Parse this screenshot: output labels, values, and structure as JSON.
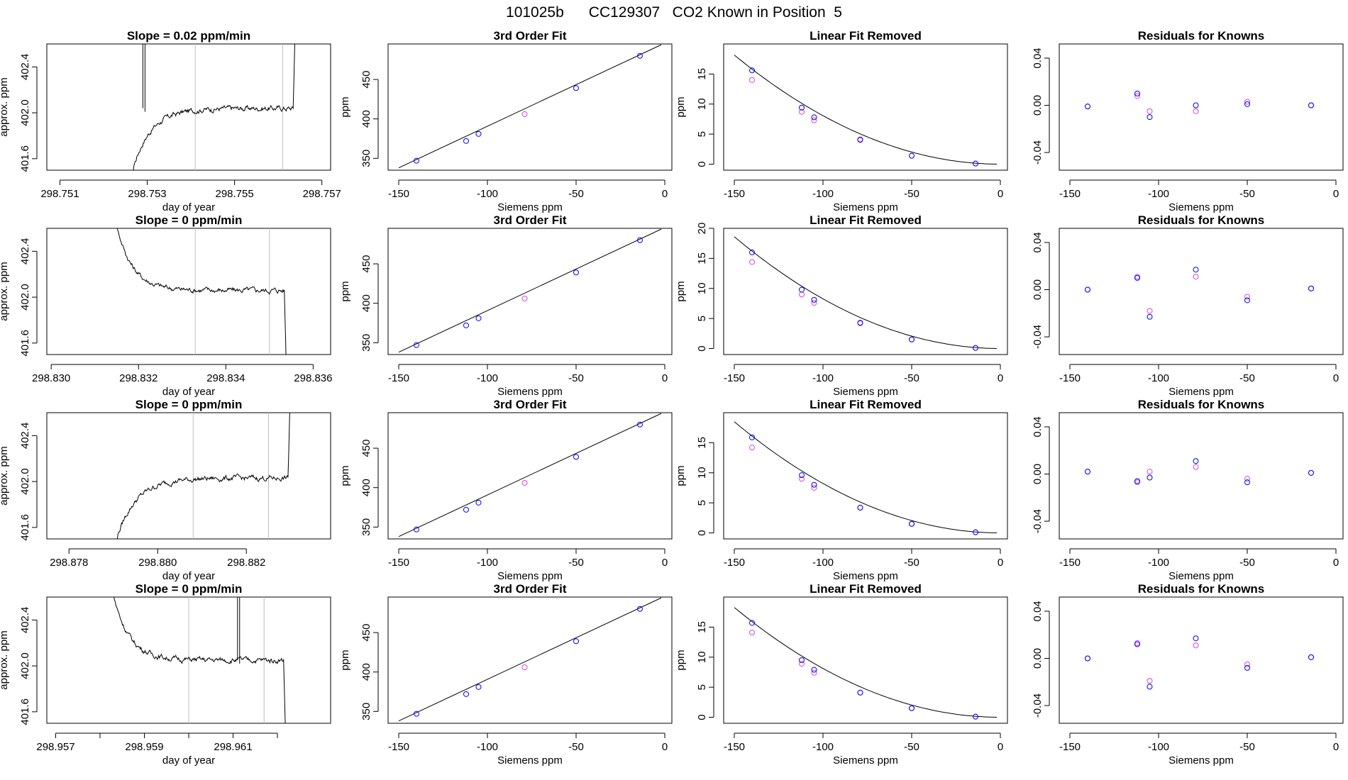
{
  "figure": {
    "title": "101025b      CC129307   CO2 Known in Position  5",
    "colors": {
      "line": "#000000",
      "grid": "#bebebe",
      "blue": "#0000ff",
      "magenta": "#dd44dd",
      "axis": "#000000"
    }
  },
  "chart_data": [
    {
      "type": "line",
      "panel": "time",
      "row": 0,
      "title": "Slope =  0.02  ppm/min",
      "xlabel": "day of year",
      "ylabel": "approx. ppm",
      "xlim": [
        298.7507,
        298.7572
      ],
      "ylim": [
        401.5,
        402.6
      ],
      "xticks": [
        298.751,
        298.753,
        298.755,
        298.757
      ],
      "xticklabels": [
        "298.751",
        "298.753",
        "298.755",
        "298.757"
      ],
      "yticks": [
        401.6,
        402.0,
        402.4
      ],
      "yticklabels": [
        "401.6",
        "402.0",
        "402.4"
      ],
      "vlines": [
        298.7541,
        298.7561
      ],
      "series_shape": "rise",
      "t_start": 298.7526,
      "t_end": 298.7564,
      "level": 402.04,
      "spike": 298.7529
    },
    {
      "type": "line",
      "panel": "time",
      "row": 1,
      "title": "Slope =  0  ppm/min",
      "xlabel": "day of year",
      "ylabel": "approx. ppm",
      "xlim": [
        298.8299,
        298.8364
      ],
      "ylim": [
        401.5,
        402.6
      ],
      "xticks": [
        298.83,
        298.832,
        298.834,
        298.836
      ],
      "xticklabels": [
        "298.830",
        "298.832",
        "298.834",
        "298.836"
      ],
      "yticks": [
        401.6,
        402.0,
        402.4
      ],
      "yticklabels": [
        "401.6",
        "402.0",
        "402.4"
      ],
      "vlines": [
        298.8333,
        298.835
      ],
      "series_shape": "fall",
      "t_start": 298.8314,
      "t_end": 298.8354,
      "level": 402.06
    },
    {
      "type": "line",
      "panel": "time",
      "row": 2,
      "title": "Slope =  0  ppm/min",
      "xlabel": "day of year",
      "ylabel": "approx. ppm",
      "xlim": [
        298.8775,
        298.8839
      ],
      "ylim": [
        401.5,
        402.6
      ],
      "xticks": [
        298.878,
        298.88,
        298.882
      ],
      "xticklabels": [
        "298.878",
        "298.880",
        "298.882"
      ],
      "yticks": [
        401.6,
        402.0,
        402.4
      ],
      "yticklabels": [
        "401.6",
        "402.0",
        "402.4"
      ],
      "vlines": [
        298.8808,
        298.8825
      ],
      "series_shape": "rise",
      "t_start": 298.879,
      "t_end": 298.883,
      "level": 402.03
    },
    {
      "type": "line",
      "panel": "time",
      "row": 3,
      "title": "Slope =  0  ppm/min",
      "xlabel": "day of year",
      "ylabel": "approx. ppm",
      "xlim": [
        298.9568,
        298.9632
      ],
      "ylim": [
        401.5,
        402.6
      ],
      "xticks": [
        298.957,
        298.958,
        298.959,
        298.96,
        298.961,
        298.962
      ],
      "xticklabels": [
        "298.957",
        "",
        "298.959",
        "",
        "298.961",
        ""
      ],
      "yticks": [
        401.6,
        402.0,
        402.4
      ],
      "yticklabels": [
        "401.6",
        "402.0",
        "402.4"
      ],
      "vlines": [
        298.96,
        298.9617
      ],
      "series_shape": "fall",
      "t_start": 298.9582,
      "t_end": 298.9622,
      "level": 402.05,
      "spike": 298.9611
    },
    {
      "type": "scatter",
      "panel": "fit",
      "row": 0,
      "title": "3rd Order Fit",
      "xlabel": "Siemens ppm",
      "ylabel": "ppm",
      "xlim": [
        -156,
        4
      ],
      "ylim": [
        335,
        495
      ],
      "xticks": [
        -150,
        -100,
        -50,
        0
      ],
      "yticks": [
        350,
        400,
        450
      ],
      "x": [
        -140,
        -112,
        -105,
        -79,
        -50,
        -14
      ],
      "y": [
        347,
        372,
        381,
        406,
        439,
        480
      ]
    },
    {
      "type": "scatter",
      "panel": "fit",
      "row": 1,
      "title": "3rd Order Fit",
      "xlabel": "Siemens ppm",
      "ylabel": "ppm",
      "xlim": [
        -156,
        4
      ],
      "ylim": [
        335,
        495
      ],
      "xticks": [
        -150,
        -100,
        -50,
        0
      ],
      "yticks": [
        350,
        400,
        450
      ],
      "x": [
        -140,
        -112,
        -105,
        -79,
        -50,
        -14
      ],
      "y": [
        347,
        372,
        381,
        406,
        439,
        480
      ]
    },
    {
      "type": "scatter",
      "panel": "fit",
      "row": 2,
      "title": "3rd Order Fit",
      "xlabel": "Siemens ppm",
      "ylabel": "ppm",
      "xlim": [
        -156,
        4
      ],
      "ylim": [
        335,
        495
      ],
      "xticks": [
        -150,
        -100,
        -50,
        0
      ],
      "yticks": [
        350,
        400,
        450
      ],
      "x": [
        -140,
        -112,
        -105,
        -79,
        -50,
        -14
      ],
      "y": [
        347,
        372,
        381,
        406,
        439,
        480
      ]
    },
    {
      "type": "scatter",
      "panel": "fit",
      "row": 3,
      "title": "3rd Order Fit",
      "xlabel": "Siemens ppm",
      "ylabel": "ppm",
      "xlim": [
        -156,
        4
      ],
      "ylim": [
        335,
        495
      ],
      "xticks": [
        -150,
        -100,
        -50,
        0
      ],
      "yticks": [
        350,
        400,
        450
      ],
      "x": [
        -140,
        -112,
        -105,
        -79,
        -50,
        -14
      ],
      "y": [
        347,
        372,
        381,
        406,
        439,
        480
      ]
    },
    {
      "type": "scatter",
      "panel": "lin",
      "row": 0,
      "title": "Linear Fit Removed",
      "xlabel": "Siemens ppm",
      "ylabel": "ppm",
      "xlim": [
        -156,
        4
      ],
      "ylim": [
        -1,
        20
      ],
      "xticks": [
        -150,
        -100,
        -50,
        0
      ],
      "yticks": [
        0,
        5,
        10,
        15
      ],
      "x": [
        -140,
        -112,
        -105,
        -79,
        -50,
        -14
      ],
      "blue": [
        15.6,
        9.4,
        7.8,
        4.1,
        1.4,
        0.1
      ],
      "magenta": [
        14.0,
        8.7,
        7.3,
        4.0,
        1.4,
        0.1
      ],
      "curve_a": 0.000807
    },
    {
      "type": "scatter",
      "panel": "lin",
      "row": 1,
      "title": "Linear Fit Removed",
      "xlabel": "Siemens ppm",
      "ylabel": "ppm",
      "xlim": [
        -156,
        4
      ],
      "ylim": [
        -1,
        20
      ],
      "xticks": [
        -150,
        -100,
        -50,
        0
      ],
      "yticks": [
        0,
        5,
        10,
        15,
        20
      ],
      "x": [
        -140,
        -112,
        -105,
        -79,
        -50,
        -14
      ],
      "blue": [
        16.0,
        9.8,
        8.1,
        4.3,
        1.5,
        0.1
      ],
      "magenta": [
        14.4,
        9.0,
        7.6,
        4.2,
        1.5,
        0.1
      ],
      "curve_a": 0.000827
    },
    {
      "type": "scatter",
      "panel": "lin",
      "row": 2,
      "title": "Linear Fit Removed",
      "xlabel": "Siemens ppm",
      "ylabel": "ppm",
      "xlim": [
        -156,
        4
      ],
      "ylim": [
        -1,
        20
      ],
      "xticks": [
        -150,
        -100,
        -50,
        0
      ],
      "yticks": [
        0,
        5,
        10,
        15
      ],
      "x": [
        -140,
        -112,
        -105,
        -79,
        -50,
        -14
      ],
      "blue": [
        15.9,
        9.6,
        8.0,
        4.2,
        1.5,
        0.1
      ],
      "magenta": [
        14.2,
        9.0,
        7.5,
        4.2,
        1.5,
        0.1
      ],
      "curve_a": 0.000822
    },
    {
      "type": "scatter",
      "panel": "lin",
      "row": 3,
      "title": "Linear Fit Removed",
      "xlabel": "Siemens ppm",
      "ylabel": "ppm",
      "xlim": [
        -156,
        4
      ],
      "ylim": [
        -1,
        20
      ],
      "xticks": [
        -150,
        -100,
        -50,
        0
      ],
      "yticks": [
        0,
        5,
        10,
        15
      ],
      "x": [
        -140,
        -112,
        -105,
        -79,
        -50,
        -14
      ],
      "blue": [
        15.7,
        9.5,
        7.9,
        4.1,
        1.5,
        0.1
      ],
      "magenta": [
        14.1,
        8.9,
        7.4,
        4.1,
        1.5,
        0.1
      ],
      "curve_a": 0.000812
    },
    {
      "type": "scatter",
      "panel": "res",
      "row": 0,
      "title": "Residuals for Knowns",
      "xlabel": "Siemens ppm",
      "ylabel": "",
      "xlim": [
        -156,
        4
      ],
      "ylim": [
        -0.055,
        0.052
      ],
      "xticks": [
        -150,
        -100,
        -50,
        0
      ],
      "yticks": [
        -0.04,
        0.0,
        0.04
      ],
      "yticklabels": [
        "-0.04",
        "0.00",
        "0.04"
      ],
      "x": [
        -140,
        -112,
        -105,
        -79,
        -50,
        -14
      ],
      "blue": [
        -0.001,
        0.01,
        -0.01,
        0.0,
        0.001,
        0.0
      ],
      "magenta": [
        -0.001,
        0.008,
        -0.005,
        -0.005,
        0.003,
        0.0
      ]
    },
    {
      "type": "scatter",
      "panel": "res",
      "row": 1,
      "title": "Residuals for Knowns",
      "xlabel": "Siemens ppm",
      "ylabel": "",
      "xlim": [
        -156,
        4
      ],
      "ylim": [
        -0.055,
        0.052
      ],
      "xticks": [
        -150,
        -100,
        -50,
        0
      ],
      "yticks": [
        -0.04,
        0.0,
        0.04
      ],
      "yticklabels": [
        "-0.04",
        "0.00",
        "0.04"
      ],
      "x": [
        -140,
        -112,
        -105,
        -79,
        -50,
        -14
      ],
      "blue": [
        0.0,
        0.01,
        -0.023,
        0.017,
        -0.009,
        0.001
      ],
      "magenta": [
        0.0,
        0.011,
        -0.018,
        0.011,
        -0.006,
        0.001
      ]
    },
    {
      "type": "scatter",
      "panel": "res",
      "row": 2,
      "title": "Residuals for Knowns",
      "xlabel": "Siemens ppm",
      "ylabel": "",
      "xlim": [
        -156,
        4
      ],
      "ylim": [
        -0.055,
        0.052
      ],
      "xticks": [
        -150,
        -100,
        -50,
        0
      ],
      "yticks": [
        -0.04,
        0.0,
        0.04
      ],
      "yticklabels": [
        "-0.04",
        "0.00",
        "0.04"
      ],
      "x": [
        -140,
        -112,
        -105,
        -79,
        -50,
        -14
      ],
      "blue": [
        0.002,
        -0.006,
        -0.003,
        0.011,
        -0.007,
        0.001
      ],
      "magenta": [
        0.002,
        -0.007,
        0.002,
        0.006,
        -0.004,
        0.001
      ]
    },
    {
      "type": "scatter",
      "panel": "res",
      "row": 3,
      "title": "Residuals for Knowns",
      "xlabel": "Siemens ppm",
      "ylabel": "",
      "xlim": [
        -156,
        4
      ],
      "ylim": [
        -0.055,
        0.052
      ],
      "xticks": [
        -150,
        -100,
        -50,
        0
      ],
      "yticks": [
        -0.04,
        0.0,
        0.04
      ],
      "yticklabels": [
        "-0.04",
        "0.00",
        "0.04"
      ],
      "x": [
        -140,
        -112,
        -105,
        -79,
        -50,
        -14
      ],
      "blue": [
        0.0,
        0.012,
        -0.024,
        0.017,
        -0.008,
        0.001
      ],
      "magenta": [
        0.0,
        0.013,
        -0.019,
        0.011,
        -0.005,
        0.001
      ]
    }
  ]
}
